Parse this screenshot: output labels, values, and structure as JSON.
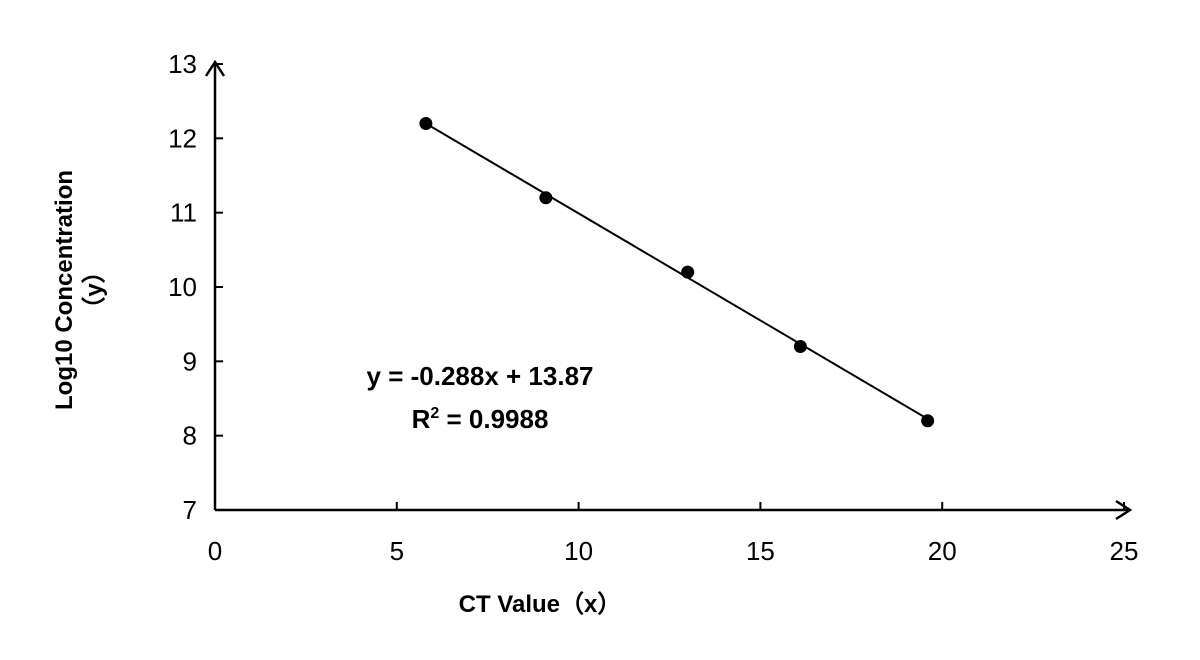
{
  "chart_data": {
    "type": "scatter",
    "title": "",
    "xlabel": "CT Value（x）",
    "ylabel_line1": "Log10 Concentration",
    "ylabel_line2": "（y）",
    "xlim": [
      0,
      25
    ],
    "ylim": [
      7,
      13
    ],
    "xticks": [
      0,
      5,
      10,
      15,
      20,
      25
    ],
    "yticks": [
      7,
      8,
      9,
      10,
      11,
      12,
      13
    ],
    "grid": false,
    "legend": "none",
    "series": [
      {
        "x": [
          5.8,
          9.1,
          13.0,
          16.1,
          19.6
        ],
        "y": [
          12.2,
          11.2,
          10.2,
          9.2,
          8.2
        ]
      }
    ],
    "trendline": {
      "slope": -0.288,
      "intercept": 13.87,
      "x_range": [
        5.8,
        19.6
      ]
    },
    "annotations": {
      "equation": "y = -0.288x + 13.87",
      "r2_prefix": "R",
      "r2_sup": "2",
      "r2_suffix": " = 0.9988"
    },
    "colors": {
      "marker": "#000000",
      "line": "#000000",
      "axis": "#000000"
    }
  }
}
